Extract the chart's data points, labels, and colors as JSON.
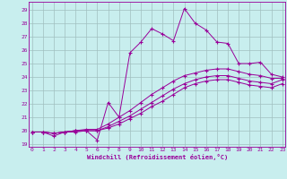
{
  "xlabel": "Windchill (Refroidissement éolien,°C)",
  "bg_color": "#c8eeee",
  "line_color": "#990099",
  "marker": "+",
  "xlim": [
    -0.3,
    23.3
  ],
  "ylim": [
    18.8,
    29.6
  ],
  "yticks": [
    19,
    20,
    21,
    22,
    23,
    24,
    25,
    26,
    27,
    28,
    29
  ],
  "xticks": [
    0,
    1,
    2,
    3,
    4,
    5,
    6,
    7,
    8,
    9,
    10,
    11,
    12,
    13,
    14,
    15,
    16,
    17,
    18,
    19,
    20,
    21,
    22,
    23
  ],
  "grid_color": "#a0c0c0",
  "series": [
    {
      "x": [
        0,
        1,
        2,
        3,
        4,
        5,
        6,
        7,
        8,
        9,
        10,
        11,
        12,
        13,
        14,
        15,
        16,
        17,
        18,
        19,
        20,
        21,
        22,
        23
      ],
      "y": [
        19.9,
        19.9,
        19.6,
        19.9,
        19.9,
        20.0,
        19.3,
        22.1,
        21.0,
        25.8,
        26.6,
        27.6,
        27.2,
        26.7,
        29.1,
        28.0,
        27.5,
        26.6,
        26.5,
        25.0,
        25.0,
        25.1,
        24.2,
        24.0
      ]
    },
    {
      "x": [
        0,
        1,
        2,
        3,
        4,
        5,
        6,
        7,
        8,
        9,
        10,
        11,
        12,
        13,
        14,
        15,
        16,
        17,
        18,
        19,
        20,
        21,
        22,
        23
      ],
      "y": [
        19.9,
        19.9,
        19.8,
        19.9,
        20.0,
        20.1,
        20.1,
        20.5,
        21.0,
        21.5,
        22.1,
        22.7,
        23.2,
        23.7,
        24.1,
        24.3,
        24.5,
        24.6,
        24.6,
        24.4,
        24.2,
        24.1,
        23.9,
        23.9
      ]
    },
    {
      "x": [
        0,
        1,
        2,
        3,
        4,
        5,
        6,
        7,
        8,
        9,
        10,
        11,
        12,
        13,
        14,
        15,
        16,
        17,
        18,
        19,
        20,
        21,
        22,
        23
      ],
      "y": [
        19.9,
        19.9,
        19.8,
        19.9,
        20.0,
        20.0,
        20.0,
        20.3,
        20.7,
        21.1,
        21.6,
        22.1,
        22.6,
        23.1,
        23.5,
        23.8,
        24.0,
        24.1,
        24.1,
        23.9,
        23.7,
        23.6,
        23.5,
        23.8
      ]
    },
    {
      "x": [
        0,
        1,
        2,
        3,
        4,
        5,
        6,
        7,
        8,
        9,
        10,
        11,
        12,
        13,
        14,
        15,
        16,
        17,
        18,
        19,
        20,
        21,
        22,
        23
      ],
      "y": [
        19.9,
        19.9,
        19.8,
        19.9,
        20.0,
        20.0,
        20.0,
        20.2,
        20.5,
        20.9,
        21.3,
        21.8,
        22.2,
        22.7,
        23.2,
        23.5,
        23.7,
        23.8,
        23.8,
        23.6,
        23.4,
        23.3,
        23.2,
        23.5
      ]
    }
  ]
}
